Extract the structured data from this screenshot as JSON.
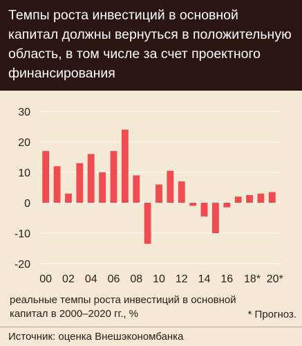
{
  "header": {
    "title": "Темпы роста инвестиций в основной\nкапитал должны вернуться в положительную\nобласть, в том числе за счет проектного\nфинансирования"
  },
  "caption": "реальные темпы роста инвестиций в основной капитал в 2000–2020 гг., %",
  "footnote": "* Прогноз.",
  "source": "Источник: оценка Внешэкономбанка",
  "colors": {
    "header_bg": "#2a1512",
    "panel_bg": "#f3e9d5",
    "bar": "#ef4b50",
    "grid": "#ffffff"
  },
  "chart_data": {
    "type": "bar",
    "categories": [
      "2000",
      "2001",
      "2002",
      "2003",
      "2004",
      "2005",
      "2006",
      "2007",
      "2008",
      "2009",
      "2010",
      "2011",
      "2012",
      "2013",
      "2014",
      "2015",
      "2016",
      "2017",
      "2018",
      "2019",
      "2020"
    ],
    "values": [
      17,
      12,
      3,
      13,
      16,
      10,
      17,
      24,
      9,
      -13.5,
      6,
      10.5,
      7,
      -1,
      -4.5,
      -10,
      -1.5,
      2,
      2.5,
      3,
      3.5
    ],
    "forecast_from": "2018",
    "ylim": [
      -20,
      30
    ],
    "yticks": [
      "30",
      "20",
      "10",
      "0",
      "-10",
      "-20"
    ],
    "ytick_values": [
      30,
      20,
      10,
      0,
      -10,
      -20
    ],
    "xtick_labels": [
      "00",
      "02",
      "04",
      "06",
      "08",
      "10",
      "12",
      "14",
      "16",
      "18*",
      "20*"
    ],
    "xtick_indices": [
      0,
      2,
      4,
      6,
      8,
      10,
      12,
      14,
      16,
      18,
      20
    ],
    "grid": "horizontal",
    "title": "",
    "xlabel": "",
    "ylabel": ""
  }
}
